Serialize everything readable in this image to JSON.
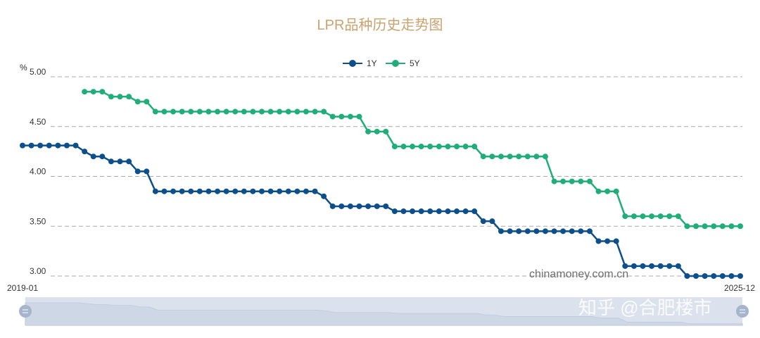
{
  "chart_data": {
    "type": "line",
    "title": "LPR品种历史走势图",
    "ylabel": "%",
    "ylim": [
      3.0,
      5.0
    ],
    "yticks": [
      "5.00",
      "4.50",
      "4.00",
      "3.50",
      "3.00"
    ],
    "xlabels": [
      "2019-01",
      "2025-12"
    ],
    "grid": true,
    "legend_position": "top-center",
    "series": [
      {
        "name": "1Y",
        "color": "#0d4f8b",
        "values": [
          4.31,
          4.31,
          4.31,
          4.31,
          4.31,
          4.31,
          4.31,
          4.25,
          4.2,
          4.2,
          4.15,
          4.15,
          4.15,
          4.05,
          4.05,
          3.85,
          3.85,
          3.85,
          3.85,
          3.85,
          3.85,
          3.85,
          3.85,
          3.85,
          3.85,
          3.85,
          3.85,
          3.85,
          3.85,
          3.85,
          3.85,
          3.85,
          3.85,
          3.85,
          3.8,
          3.7,
          3.7,
          3.7,
          3.7,
          3.7,
          3.7,
          3.7,
          3.65,
          3.65,
          3.65,
          3.65,
          3.65,
          3.65,
          3.65,
          3.65,
          3.65,
          3.65,
          3.55,
          3.55,
          3.45,
          3.45,
          3.45,
          3.45,
          3.45,
          3.45,
          3.45,
          3.45,
          3.45,
          3.45,
          3.45,
          3.35,
          3.35,
          3.35,
          3.1,
          3.1,
          3.1,
          3.1,
          3.1,
          3.1,
          3.1,
          3.0,
          3.0,
          3.0,
          3.0,
          3.0,
          3.0,
          3.0
        ]
      },
      {
        "name": "5Y",
        "color": "#1fad7a",
        "values": [
          null,
          null,
          null,
          null,
          null,
          null,
          null,
          4.85,
          4.85,
          4.85,
          4.8,
          4.8,
          4.8,
          4.75,
          4.75,
          4.65,
          4.65,
          4.65,
          4.65,
          4.65,
          4.65,
          4.65,
          4.65,
          4.65,
          4.65,
          4.65,
          4.65,
          4.65,
          4.65,
          4.65,
          4.65,
          4.65,
          4.65,
          4.65,
          4.65,
          4.6,
          4.6,
          4.6,
          4.6,
          4.45,
          4.45,
          4.45,
          4.3,
          4.3,
          4.3,
          4.3,
          4.3,
          4.3,
          4.3,
          4.3,
          4.3,
          4.3,
          4.2,
          4.2,
          4.2,
          4.2,
          4.2,
          4.2,
          4.2,
          4.2,
          3.95,
          3.95,
          3.95,
          3.95,
          3.95,
          3.85,
          3.85,
          3.85,
          3.6,
          3.6,
          3.6,
          3.6,
          3.6,
          3.6,
          3.6,
          3.5,
          3.5,
          3.5,
          3.5,
          3.5,
          3.5,
          3.5
        ]
      }
    ]
  },
  "watermark": "chinamoney.com.cn",
  "overlay_text": "知乎 @合肥楼市"
}
